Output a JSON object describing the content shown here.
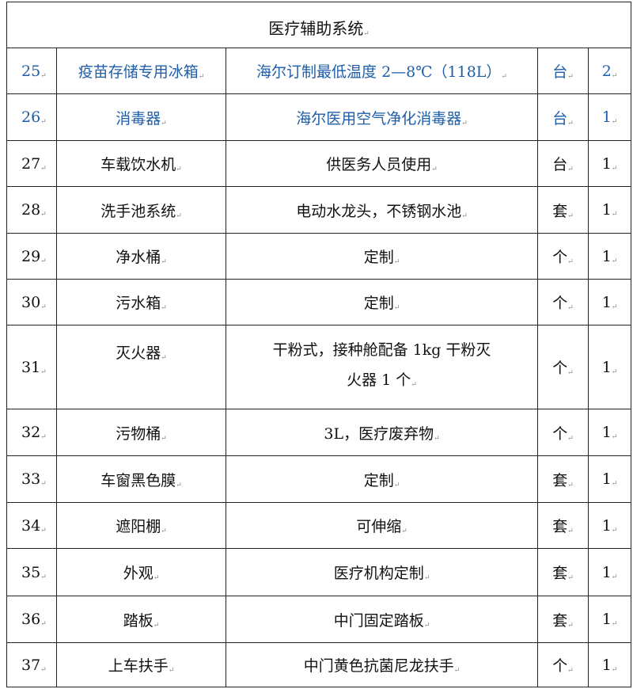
{
  "section_title": "医疗辅助系统",
  "colors": {
    "highlight_text": "#1f5ea8",
    "text": "#111111",
    "border": "#222222"
  },
  "rows": [
    {
      "no": "25",
      "name": "疫苗存储专用冰箱",
      "desc": "海尔订制最低温度 2—8℃（118L）",
      "unit": "台",
      "qty": "2",
      "highlight": true
    },
    {
      "no": "26",
      "name": "消毒器",
      "desc": "海尔医用空气净化消毒器",
      "unit": "台",
      "qty": "1",
      "highlight": true
    },
    {
      "no": "27",
      "name": "车载饮水机",
      "desc": "供医务人员使用",
      "unit": "台",
      "qty": "1"
    },
    {
      "no": "28",
      "name": "洗手池系统",
      "desc": "电动水龙头，不锈钢水池",
      "unit": "套",
      "qty": "1"
    },
    {
      "no": "29",
      "name": "净水桶",
      "desc": "定制",
      "unit": "个",
      "qty": "1"
    },
    {
      "no": "30",
      "name": "污水箱",
      "desc": "定制",
      "unit": "个",
      "qty": "1"
    },
    {
      "no": "31",
      "name": "灭火器",
      "desc": "干粉式，接种舱配备 1kg 干粉灭",
      "desc_line2": "火器 1 个",
      "unit": "个",
      "qty": "1"
    },
    {
      "no": "32",
      "name": "污物桶",
      "desc": "3L，医疗废弃物",
      "unit": "个",
      "qty": "1"
    },
    {
      "no": "33",
      "name": "车窗黑色膜",
      "desc": "定制",
      "unit": "套",
      "qty": "1"
    },
    {
      "no": "34",
      "name": "遮阳棚",
      "desc": "可伸缩",
      "unit": "套",
      "qty": "1"
    },
    {
      "no": "35",
      "name": "外观",
      "desc": "医疗机构定制",
      "unit": "套",
      "qty": "1"
    },
    {
      "no": "36",
      "name": "踏板",
      "desc": "中门固定踏板",
      "unit": "套",
      "qty": "1"
    },
    {
      "no": "37",
      "name": "上车扶手",
      "desc": "中门黄色抗菌尼龙扶手",
      "unit": "个",
      "qty": "1"
    }
  ]
}
